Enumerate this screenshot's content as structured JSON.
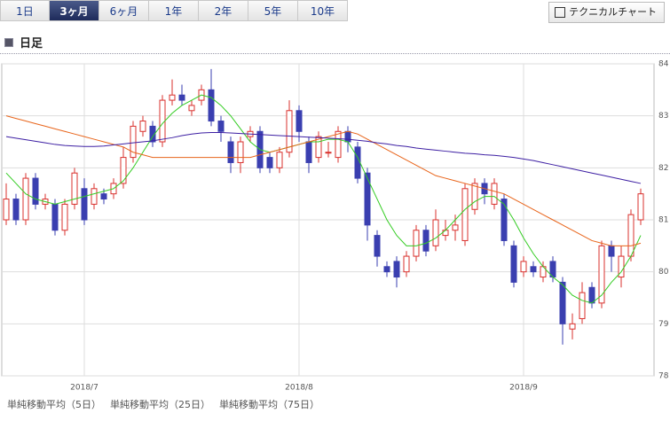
{
  "tabs": [
    "1日",
    "3ヶ月",
    "6ヶ月",
    "1年",
    "2年",
    "5年",
    "10年"
  ],
  "button": "テクニカルチャート",
  "section_title": "日足",
  "chart_data": {
    "type": "candlestick",
    "categories": [
      null,
      null,
      null,
      null,
      null,
      null,
      null,
      null,
      "2018/7",
      null,
      null,
      null,
      null,
      null,
      null,
      null,
      null,
      null,
      null,
      null,
      null,
      null,
      null,
      null,
      null,
      null,
      null,
      null,
      null,
      null,
      "2018/8",
      null,
      null,
      null,
      null,
      null,
      null,
      null,
      null,
      null,
      null,
      null,
      null,
      null,
      null,
      null,
      null,
      null,
      null,
      null,
      null,
      null,
      null,
      "2018/9",
      null,
      null,
      null,
      null,
      null,
      null,
      null,
      null,
      null,
      null,
      null,
      null
    ],
    "open": [
      81.0,
      81.4,
      81.0,
      81.8,
      81.3,
      81.3,
      80.8,
      81.3,
      81.6,
      81.3,
      81.5,
      81.5,
      81.7,
      82.2,
      82.7,
      82.8,
      82.5,
      83.3,
      83.4,
      83.1,
      83.3,
      83.5,
      82.9,
      82.5,
      82.1,
      82.6,
      82.7,
      82.2,
      82.0,
      82.3,
      83.1,
      82.5,
      82.2,
      82.3,
      82.2,
      82.7,
      82.4,
      81.9,
      80.7,
      80.1,
      80.2,
      80.0,
      80.3,
      80.8,
      80.5,
      80.7,
      80.8,
      80.6,
      81.2,
      81.7,
      81.3,
      81.4,
      80.5,
      80.0,
      80.1,
      79.9,
      80.2,
      79.8,
      78.9,
      79.1,
      79.7,
      79.4,
      80.5,
      79.9,
      80.3,
      81.0
    ],
    "high": [
      81.7,
      81.5,
      81.9,
      81.9,
      81.5,
      81.4,
      81.4,
      82.0,
      81.8,
      81.7,
      81.6,
      81.8,
      82.4,
      82.9,
      83.0,
      82.9,
      83.4,
      83.7,
      83.6,
      83.3,
      83.6,
      83.9,
      83.0,
      82.6,
      82.6,
      82.8,
      82.8,
      82.3,
      82.4,
      83.3,
      83.2,
      82.6,
      82.7,
      82.5,
      82.8,
      82.8,
      82.5,
      82.0,
      80.8,
      80.2,
      80.3,
      80.4,
      80.9,
      80.9,
      81.2,
      81.0,
      81.1,
      81.7,
      81.8,
      81.8,
      81.8,
      81.5,
      80.6,
      80.3,
      80.2,
      80.2,
      80.3,
      79.9,
      79.2,
      79.8,
      79.8,
      80.6,
      80.6,
      80.5,
      81.2,
      81.6
    ],
    "low": [
      80.9,
      80.9,
      80.9,
      81.2,
      81.2,
      80.7,
      80.7,
      81.2,
      80.9,
      81.2,
      81.3,
      81.4,
      81.6,
      82.1,
      82.6,
      82.4,
      82.4,
      83.2,
      83.2,
      83.0,
      83.2,
      82.8,
      82.5,
      81.9,
      81.9,
      82.5,
      81.9,
      81.9,
      81.9,
      82.2,
      82.5,
      81.9,
      82.1,
      82.2,
      82.1,
      82.3,
      81.7,
      80.6,
      80.1,
      79.9,
      79.7,
      79.9,
      80.2,
      80.3,
      80.4,
      80.6,
      80.6,
      80.5,
      81.1,
      81.3,
      81.2,
      80.5,
      79.7,
      79.9,
      79.9,
      79.8,
      79.8,
      78.6,
      78.7,
      79.0,
      79.3,
      79.3,
      80.0,
      79.7,
      80.2,
      80.9
    ],
    "close": [
      81.4,
      81.0,
      81.8,
      81.3,
      81.4,
      80.8,
      81.3,
      81.9,
      81.0,
      81.6,
      81.4,
      81.7,
      82.2,
      82.8,
      82.9,
      82.5,
      83.3,
      83.4,
      83.3,
      83.2,
      83.5,
      82.9,
      82.7,
      82.1,
      82.5,
      82.7,
      82.0,
      82.0,
      82.3,
      83.1,
      82.7,
      82.1,
      82.6,
      82.3,
      82.7,
      82.5,
      81.8,
      80.9,
      80.3,
      80.0,
      79.9,
      80.3,
      80.8,
      80.4,
      81.0,
      80.8,
      80.9,
      81.6,
      81.7,
      81.5,
      81.7,
      80.6,
      79.8,
      80.2,
      80.0,
      80.1,
      79.9,
      79.0,
      79.0,
      79.6,
      79.4,
      80.5,
      80.3,
      80.3,
      81.1,
      81.5
    ],
    "up_color": "#d9302c",
    "down_color": "#3a3fb0",
    "series": [
      {
        "name": "単純移動平均（5日）",
        "color": "#33cc22",
        "values": [
          81.9,
          81.7,
          81.5,
          81.4,
          81.35,
          81.3,
          81.35,
          81.4,
          81.45,
          81.5,
          81.55,
          81.6,
          81.75,
          82.0,
          82.3,
          82.6,
          82.85,
          83.05,
          83.2,
          83.3,
          83.4,
          83.35,
          83.2,
          83.0,
          82.75,
          82.5,
          82.35,
          82.3,
          82.35,
          82.4,
          82.45,
          82.5,
          82.5,
          82.55,
          82.55,
          82.5,
          82.2,
          81.8,
          81.4,
          81.0,
          80.7,
          80.5,
          80.5,
          80.55,
          80.65,
          80.8,
          81.0,
          81.2,
          81.35,
          81.45,
          81.45,
          81.3,
          81.0,
          80.65,
          80.35,
          80.1,
          79.9,
          79.75,
          79.55,
          79.45,
          79.4,
          79.55,
          79.8,
          80.0,
          80.3,
          80.7
        ]
      },
      {
        "name": "単純移動平均（25日）",
        "color": "#e8641a",
        "values": [
          83.0,
          82.95,
          82.9,
          82.85,
          82.8,
          82.75,
          82.7,
          82.65,
          82.6,
          82.55,
          82.5,
          82.45,
          82.4,
          82.3,
          82.25,
          82.2,
          82.2,
          82.2,
          82.2,
          82.2,
          82.2,
          82.2,
          82.2,
          82.2,
          82.2,
          82.2,
          82.25,
          82.3,
          82.35,
          82.4,
          82.45,
          82.5,
          82.55,
          82.6,
          82.65,
          82.7,
          82.65,
          82.55,
          82.45,
          82.35,
          82.25,
          82.15,
          82.05,
          81.95,
          81.85,
          81.8,
          81.75,
          81.7,
          81.65,
          81.6,
          81.55,
          81.5,
          81.4,
          81.3,
          81.2,
          81.1,
          81.0,
          80.9,
          80.8,
          80.7,
          80.6,
          80.55,
          80.5,
          80.5,
          80.5,
          80.55
        ]
      },
      {
        "name": "単純移動平均（75日）",
        "color": "#3d1fa3",
        "values": [
          82.6,
          82.57,
          82.54,
          82.51,
          82.48,
          82.45,
          82.43,
          82.42,
          82.41,
          82.41,
          82.42,
          82.44,
          82.46,
          82.48,
          82.5,
          82.52,
          82.55,
          82.58,
          82.62,
          82.65,
          82.67,
          82.68,
          82.68,
          82.67,
          82.66,
          82.65,
          82.64,
          82.63,
          82.62,
          82.61,
          82.6,
          82.59,
          82.58,
          82.57,
          82.56,
          82.55,
          82.53,
          82.51,
          82.48,
          82.46,
          82.43,
          82.41,
          82.38,
          82.36,
          82.34,
          82.32,
          82.3,
          82.28,
          82.27,
          82.25,
          82.24,
          82.22,
          82.2,
          82.17,
          82.14,
          82.1,
          82.06,
          82.02,
          81.98,
          81.94,
          81.9,
          81.86,
          81.82,
          81.78,
          81.74,
          81.7
        ]
      }
    ],
    "ylim": [
      78,
      84
    ],
    "yticks": [
      78,
      79,
      80,
      81,
      82,
      83,
      84
    ],
    "grid": true
  }
}
